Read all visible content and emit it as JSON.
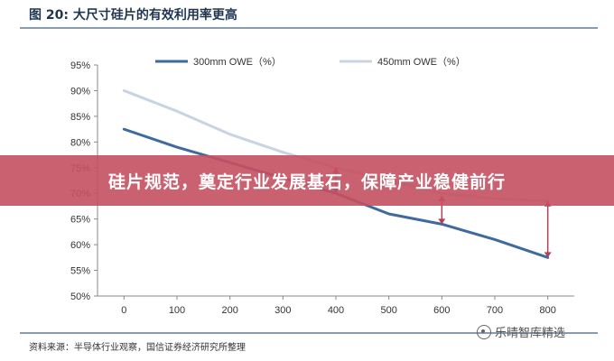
{
  "figure": {
    "title": "图 20:  大尺寸硅片的有效利用率更高",
    "source": "资料来源：半导体行业观察，国信证券经济研究所整理"
  },
  "banner": {
    "text": "硅片规范，奠定行业发展基石，保障产业稳健前行"
  },
  "watermark": {
    "text": "乐晴智库精选",
    "icon": "wechat-icon"
  },
  "colors": {
    "series_300": "#3e6a9e",
    "series_450": "#c8d4e4",
    "arrow": "#b0405a",
    "banner": "#c45060"
  },
  "chart_data": {
    "type": "line",
    "x": [
      0,
      100,
      200,
      300,
      400,
      500,
      600,
      700,
      800
    ],
    "xticks": [
      "0",
      "100",
      "200",
      "300",
      "400",
      "500",
      "600",
      "700",
      "800"
    ],
    "xlim": [
      -50,
      850
    ],
    "ylim": [
      50,
      95
    ],
    "yticks": [
      "50%",
      "55%",
      "60%",
      "65%",
      "70%",
      "75%",
      "80%",
      "85%",
      "90%",
      "95%"
    ],
    "grid": false,
    "legend_position": "top",
    "series": [
      {
        "name": "300mm OWE（%）",
        "values": [
          82.5,
          79,
          76,
          73,
          70,
          66,
          64,
          61,
          57.5
        ]
      },
      {
        "name": "450mm OWE（%）",
        "values": [
          90,
          86,
          81.5,
          78,
          75,
          72.5,
          70,
          69,
          68.5
        ]
      }
    ],
    "gap_arrows": [
      {
        "x": 400,
        "from": 75,
        "to": 70
      },
      {
        "x": 600,
        "from": 69.5,
        "to": 64
      },
      {
        "x": 800,
        "from": 68.5,
        "to": 57.5
      }
    ]
  }
}
